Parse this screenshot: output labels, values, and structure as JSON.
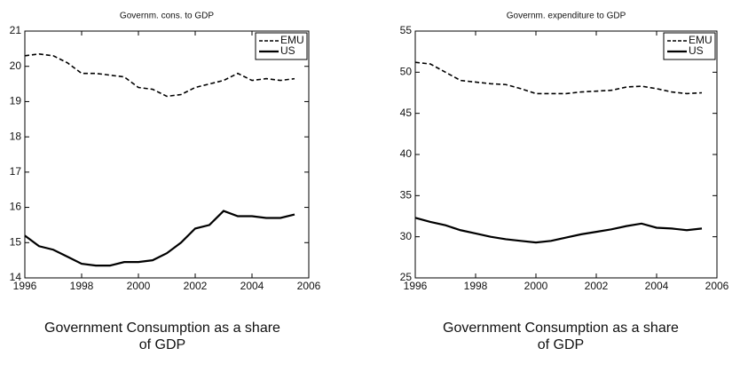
{
  "chart_data": [
    {
      "type": "line",
      "title": "Governm. cons. to GDP",
      "caption": "Government Consumption as a share of GDP",
      "x": [
        1996,
        1996.5,
        1997,
        1997.5,
        1998,
        1998.5,
        1999,
        1999.5,
        2000,
        2000.5,
        2001,
        2001.5,
        2002,
        2002.5,
        2003,
        2003.5,
        2004,
        2004.5,
        2005,
        2005.5
      ],
      "series": [
        {
          "name": "EMU",
          "color": "#000000",
          "dash": true,
          "values": [
            20.3,
            20.35,
            20.3,
            20.1,
            19.8,
            19.8,
            19.75,
            19.7,
            19.4,
            19.35,
            19.15,
            19.2,
            19.4,
            19.5,
            19.6,
            19.8,
            19.6,
            19.65,
            19.6,
            19.65
          ]
        },
        {
          "name": "US",
          "color": "#000000",
          "dash": false,
          "values": [
            15.2,
            14.9,
            14.8,
            14.6,
            14.4,
            14.35,
            14.35,
            14.45,
            14.45,
            14.5,
            14.7,
            15.0,
            15.4,
            15.5,
            15.9,
            15.75,
            15.75,
            15.7,
            15.7,
            15.8
          ]
        }
      ],
      "xlim": [
        1996,
        2006
      ],
      "xticks": [
        1996,
        1998,
        2000,
        2002,
        2004,
        2006
      ],
      "ylim": [
        14,
        21
      ],
      "yticks": [
        14,
        15,
        16,
        17,
        18,
        19,
        20,
        21
      ],
      "legend": "upper right"
    },
    {
      "type": "line",
      "title": "Governm. expenditure to GDP",
      "caption": "Government Consumption as a share of GDP",
      "x": [
        1996,
        1996.5,
        1997,
        1997.5,
        1998,
        1998.5,
        1999,
        1999.5,
        2000,
        2000.5,
        2001,
        2001.5,
        2002,
        2002.5,
        2003,
        2003.5,
        2004,
        2004.5,
        2005,
        2005.5
      ],
      "series": [
        {
          "name": "EMU",
          "color": "#000000",
          "dash": true,
          "values": [
            51.2,
            51.0,
            50.0,
            49.0,
            48.8,
            48.6,
            48.5,
            48.0,
            47.4,
            47.4,
            47.4,
            47.6,
            47.7,
            47.8,
            48.2,
            48.3,
            48.0,
            47.6,
            47.4,
            47.5
          ]
        },
        {
          "name": "US",
          "color": "#000000",
          "dash": false,
          "values": [
            32.3,
            31.8,
            31.4,
            30.8,
            30.4,
            30.0,
            29.7,
            29.5,
            29.3,
            29.5,
            29.9,
            30.3,
            30.6,
            30.9,
            31.3,
            31.6,
            31.1,
            31.0,
            30.8,
            31.0
          ]
        }
      ],
      "xlim": [
        1996,
        2006
      ],
      "xticks": [
        1996,
        1998,
        2000,
        2002,
        2004,
        2006
      ],
      "ylim": [
        25,
        55
      ],
      "yticks": [
        25,
        30,
        35,
        40,
        45,
        50,
        55
      ],
      "legend": "upper right"
    }
  ]
}
